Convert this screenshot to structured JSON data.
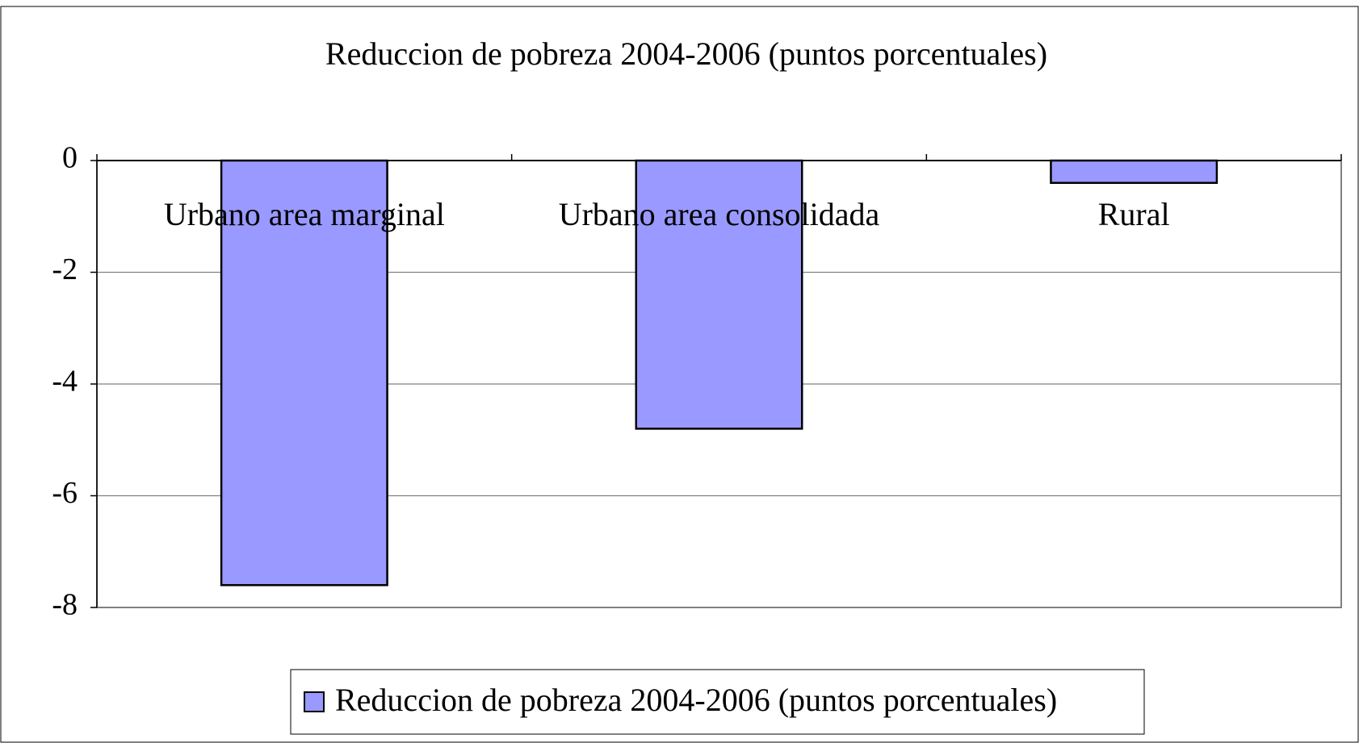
{
  "chart_data": {
    "type": "bar",
    "title": "Reduccion de pobreza 2004-2006 (puntos porcentuales)",
    "categories": [
      "Urbano area marginal",
      "Urbano area consolidada",
      "Rural"
    ],
    "series": [
      {
        "name": "Reduccion de pobreza 2004-2006 (puntos porcentuales)",
        "color": "#9999ff",
        "values": [
          -7.6,
          -4.8,
          -0.4
        ]
      }
    ],
    "ylim": [
      -8,
      0
    ],
    "yticks": [
      -8,
      -6,
      -4,
      -2,
      0
    ],
    "grid": true,
    "legend": "bottom"
  }
}
